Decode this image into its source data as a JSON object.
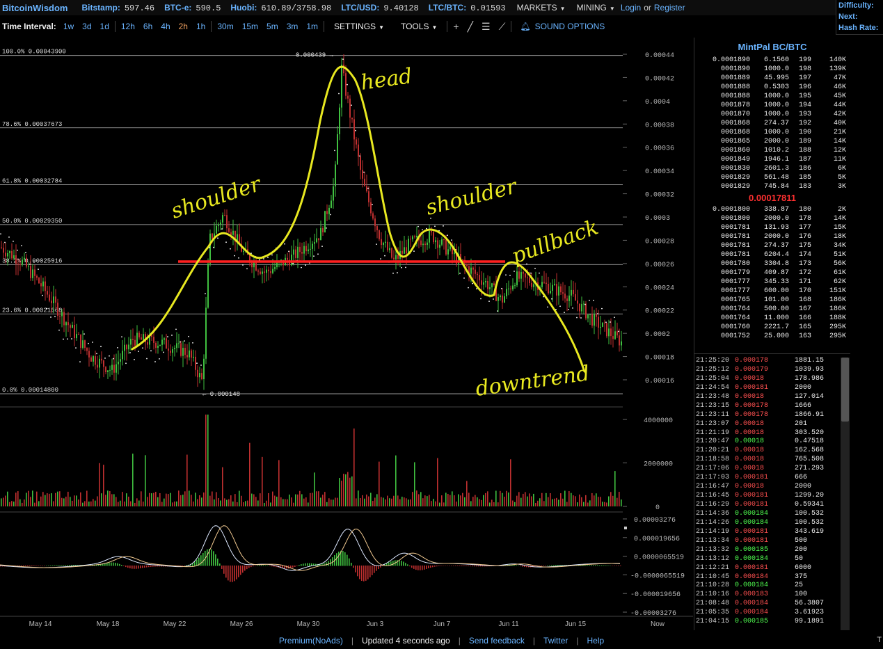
{
  "header": {
    "brand": "BitcoinWisdom",
    "tickers": [
      {
        "exchange": "Bitstamp:",
        "price": "597.46"
      },
      {
        "exchange": "BTC-e:",
        "price": "590.5"
      },
      {
        "exchange": "Huobi:",
        "price": "610.89/3758.98"
      },
      {
        "exchange": "LTC/USD:",
        "price": "9.40128"
      },
      {
        "exchange": "LTC/BTC:",
        "price": "0.01593"
      }
    ],
    "markets": "MARKETS",
    "mining": "MINING",
    "login": "Login",
    "or": "or",
    "register": "Register",
    "stats": {
      "difficulty": "Difficulty:",
      "next": "Next:",
      "hashrate": "Hash Rate:"
    }
  },
  "toolbar": {
    "time_interval": "Time Interval:",
    "groups": [
      [
        "1w",
        "3d",
        "1d"
      ],
      [
        "12h",
        "6h",
        "4h",
        "2h",
        "1h"
      ],
      [
        "30m",
        "15m",
        "5m",
        "3m",
        "1m"
      ]
    ],
    "active": "2h",
    "settings": "SETTINGS",
    "tools": "TOOLS",
    "sound": "SOUND OPTIONS"
  },
  "chart_data": {
    "type": "candlestick",
    "price_axis": [
      "0.00044",
      "0.00042",
      "0.0004",
      "0.00038",
      "0.00036",
      "0.00034",
      "0.00032",
      "0.0003",
      "0.00028",
      "0.00026",
      "0.00024",
      "0.00022",
      "0.0002",
      "0.00018",
      "0.00016"
    ],
    "fib_levels": [
      {
        "label": "100.0% 0.00043900",
        "value": 0.000439
      },
      {
        "label": "78.6% 0.00037673",
        "value": 0.00037673
      },
      {
        "label": "61.8% 0.00032784",
        "value": 0.00032784
      },
      {
        "label": "50.0% 0.00029350",
        "value": 0.0002935
      },
      {
        "label": "38.2% 0.00025916",
        "value": 0.00025916
      },
      {
        "label": "23.6% 0.00021668",
        "value": 0.00021668
      },
      {
        "label": "0.0% 0.00014800",
        "value": 0.000148
      }
    ],
    "high_marker": "0.000439 →",
    "low_marker": "← 0.000148",
    "volume_axis": [
      "4000000",
      "2000000",
      "0"
    ],
    "macd_axis": [
      "0.00003276",
      "0.000019656",
      "0.0000065519",
      "-0.0000065519",
      "-0.000019656",
      "-0.00003276"
    ],
    "x_labels": [
      "May 14",
      "May 18",
      "May 22",
      "May 26",
      "May 30",
      "Jun 3",
      "Jun 7",
      "Jun 11",
      "Jun 15",
      "Now"
    ],
    "annotations": [
      "head",
      "shoulder",
      "shoulder",
      "pullback",
      "downtrend"
    ],
    "colors": {
      "up": "#40c040",
      "down": "#c03030",
      "annotation": "#e8e820",
      "neckline": "#ff2020"
    }
  },
  "orderbook": {
    "title": "MintPal BC/BTC",
    "asks": [
      [
        "0.0001890",
        "6.1560",
        "199",
        "140K"
      ],
      [
        "0001890",
        "1000.0",
        "198",
        "139K"
      ],
      [
        "0001889",
        "45.995",
        "197",
        "47K"
      ],
      [
        "0001888",
        "0.5303",
        "196",
        "46K"
      ],
      [
        "0001888",
        "1000.0",
        "195",
        "45K"
      ],
      [
        "0001878",
        "1000.0",
        "194",
        "44K"
      ],
      [
        "0001870",
        "1000.0",
        "193",
        "42K"
      ],
      [
        "0001868",
        "274.37",
        "192",
        "40K"
      ],
      [
        "0001868",
        "1000.0",
        "190",
        "21K"
      ],
      [
        "0001865",
        "2000.0",
        "189",
        "14K"
      ],
      [
        "0001860",
        "1010.2",
        "188",
        "12K"
      ],
      [
        "0001849",
        "1946.1",
        "187",
        "11K"
      ],
      [
        "0001830",
        "2601.3",
        "186",
        "6K"
      ],
      [
        "0001829",
        "561.48",
        "185",
        "5K"
      ],
      [
        "0001829",
        "745.84",
        "183",
        "3K"
      ]
    ],
    "last_price": "0.00017811",
    "bids": [
      [
        "0.0001800",
        "338.87",
        "180",
        "2K"
      ],
      [
        "0001800",
        "2000.0",
        "178",
        "14K"
      ],
      [
        "0001781",
        "131.93",
        "177",
        "15K"
      ],
      [
        "0001781",
        "2000.0",
        "176",
        "18K"
      ],
      [
        "0001781",
        "274.37",
        "175",
        "34K"
      ],
      [
        "0001781",
        "6204.4",
        "174",
        "51K"
      ],
      [
        "0001780",
        "3304.8",
        "173",
        "56K"
      ],
      [
        "0001779",
        "409.87",
        "172",
        "61K"
      ],
      [
        "0001777",
        "345.33",
        "171",
        "62K"
      ],
      [
        "0001777",
        "600.00",
        "170",
        "151K"
      ],
      [
        "0001765",
        "101.00",
        "168",
        "186K"
      ],
      [
        "0001764",
        "500.00",
        "167",
        "186K"
      ],
      [
        "0001764",
        "11.000",
        "166",
        "188K"
      ],
      [
        "0001760",
        "2221.7",
        "165",
        "295K"
      ],
      [
        "0001752",
        "25.000",
        "163",
        "295K"
      ]
    ]
  },
  "trades": [
    [
      "21:25:20",
      "0.000178",
      "r",
      "1881.15"
    ],
    [
      "21:25:12",
      "0.000179",
      "r",
      "1039.93"
    ],
    [
      "21:25:04",
      "0.00018",
      "r",
      "178.986"
    ],
    [
      "21:24:54",
      "0.000181",
      "r",
      "2000"
    ],
    [
      "21:23:48",
      "0.00018",
      "r",
      "127.014"
    ],
    [
      "21:23:15",
      "0.000178",
      "r",
      "1666"
    ],
    [
      "21:23:11",
      "0.000178",
      "r",
      "1866.91"
    ],
    [
      "21:23:07",
      "0.00018",
      "r",
      "201"
    ],
    [
      "21:21:19",
      "0.00018",
      "r",
      "303.520"
    ],
    [
      "21:20:47",
      "0.00018",
      "g",
      "0.47518"
    ],
    [
      "21:20:21",
      "0.00018",
      "r",
      "162.568"
    ],
    [
      "21:18:58",
      "0.00018",
      "r",
      "765.508"
    ],
    [
      "21:17:06",
      "0.00018",
      "r",
      "271.293"
    ],
    [
      "21:17:03",
      "0.000181",
      "r",
      "666"
    ],
    [
      "21:16:47",
      "0.00018",
      "r",
      "2000"
    ],
    [
      "21:16:45",
      "0.000181",
      "r",
      "1299.20"
    ],
    [
      "21:16:29",
      "0.000181",
      "r",
      "0.59341"
    ],
    [
      "21:14:36",
      "0.000184",
      "g",
      "100.532"
    ],
    [
      "21:14:26",
      "0.000184",
      "g",
      "100.532"
    ],
    [
      "21:14:19",
      "0.000181",
      "r",
      "343.619"
    ],
    [
      "21:13:34",
      "0.000181",
      "r",
      "500"
    ],
    [
      "21:13:32",
      "0.000185",
      "g",
      "200"
    ],
    [
      "21:13:12",
      "0.000184",
      "g",
      "50"
    ],
    [
      "21:12:21",
      "0.000181",
      "r",
      "6000"
    ],
    [
      "21:10:45",
      "0.000184",
      "r",
      "375"
    ],
    [
      "21:10:28",
      "0.000184",
      "g",
      "25"
    ],
    [
      "21:10:16",
      "0.000183",
      "r",
      "100"
    ],
    [
      "21:08:48",
      "0.000184",
      "r",
      "56.3807"
    ],
    [
      "21:05:35",
      "0.000184",
      "r",
      "3.61923"
    ],
    [
      "21:04:15",
      "0.000185",
      "g",
      "99.1891"
    ]
  ],
  "footer": {
    "premium": "Premium(NoAds)",
    "updated": "Updated 4 seconds ago",
    "feedback": "Send feedback",
    "twitter": "Twitter",
    "help": "Help",
    "corner": "T"
  }
}
